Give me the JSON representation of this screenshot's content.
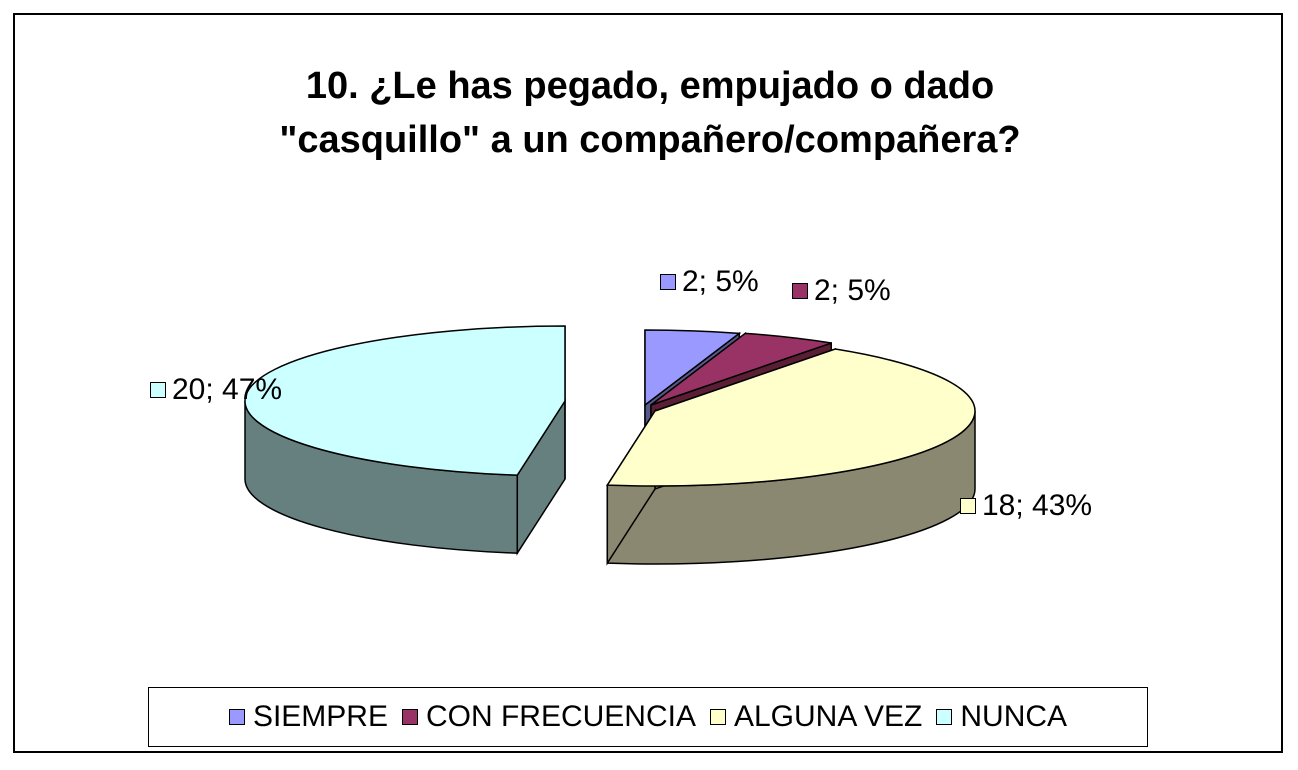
{
  "chart_data": {
    "type": "pie",
    "title": "10. ¿Le has pegado, empujado o dado\n\"casquillo\" a un compañero/compañera?",
    "categories": [
      "SIEMPRE",
      "CON FRECUENCIA",
      "ALGUNA VEZ",
      "NUNCA"
    ],
    "values": [
      2,
      2,
      18,
      20
    ],
    "percent_labels": [
      "5%",
      "5%",
      "43%",
      "47%"
    ],
    "data_labels": [
      "2; 5%",
      "2; 5%",
      "18; 43%",
      "20; 47%"
    ],
    "colors": [
      "#9999ff",
      "#993366",
      "#ffffcc",
      "#ccffff"
    ],
    "side_colors": [
      "#555a8a",
      "#5a1e35",
      "#8a8870",
      "#668080"
    ],
    "three_d": true,
    "exploded": true,
    "legend_position": "bottom"
  }
}
